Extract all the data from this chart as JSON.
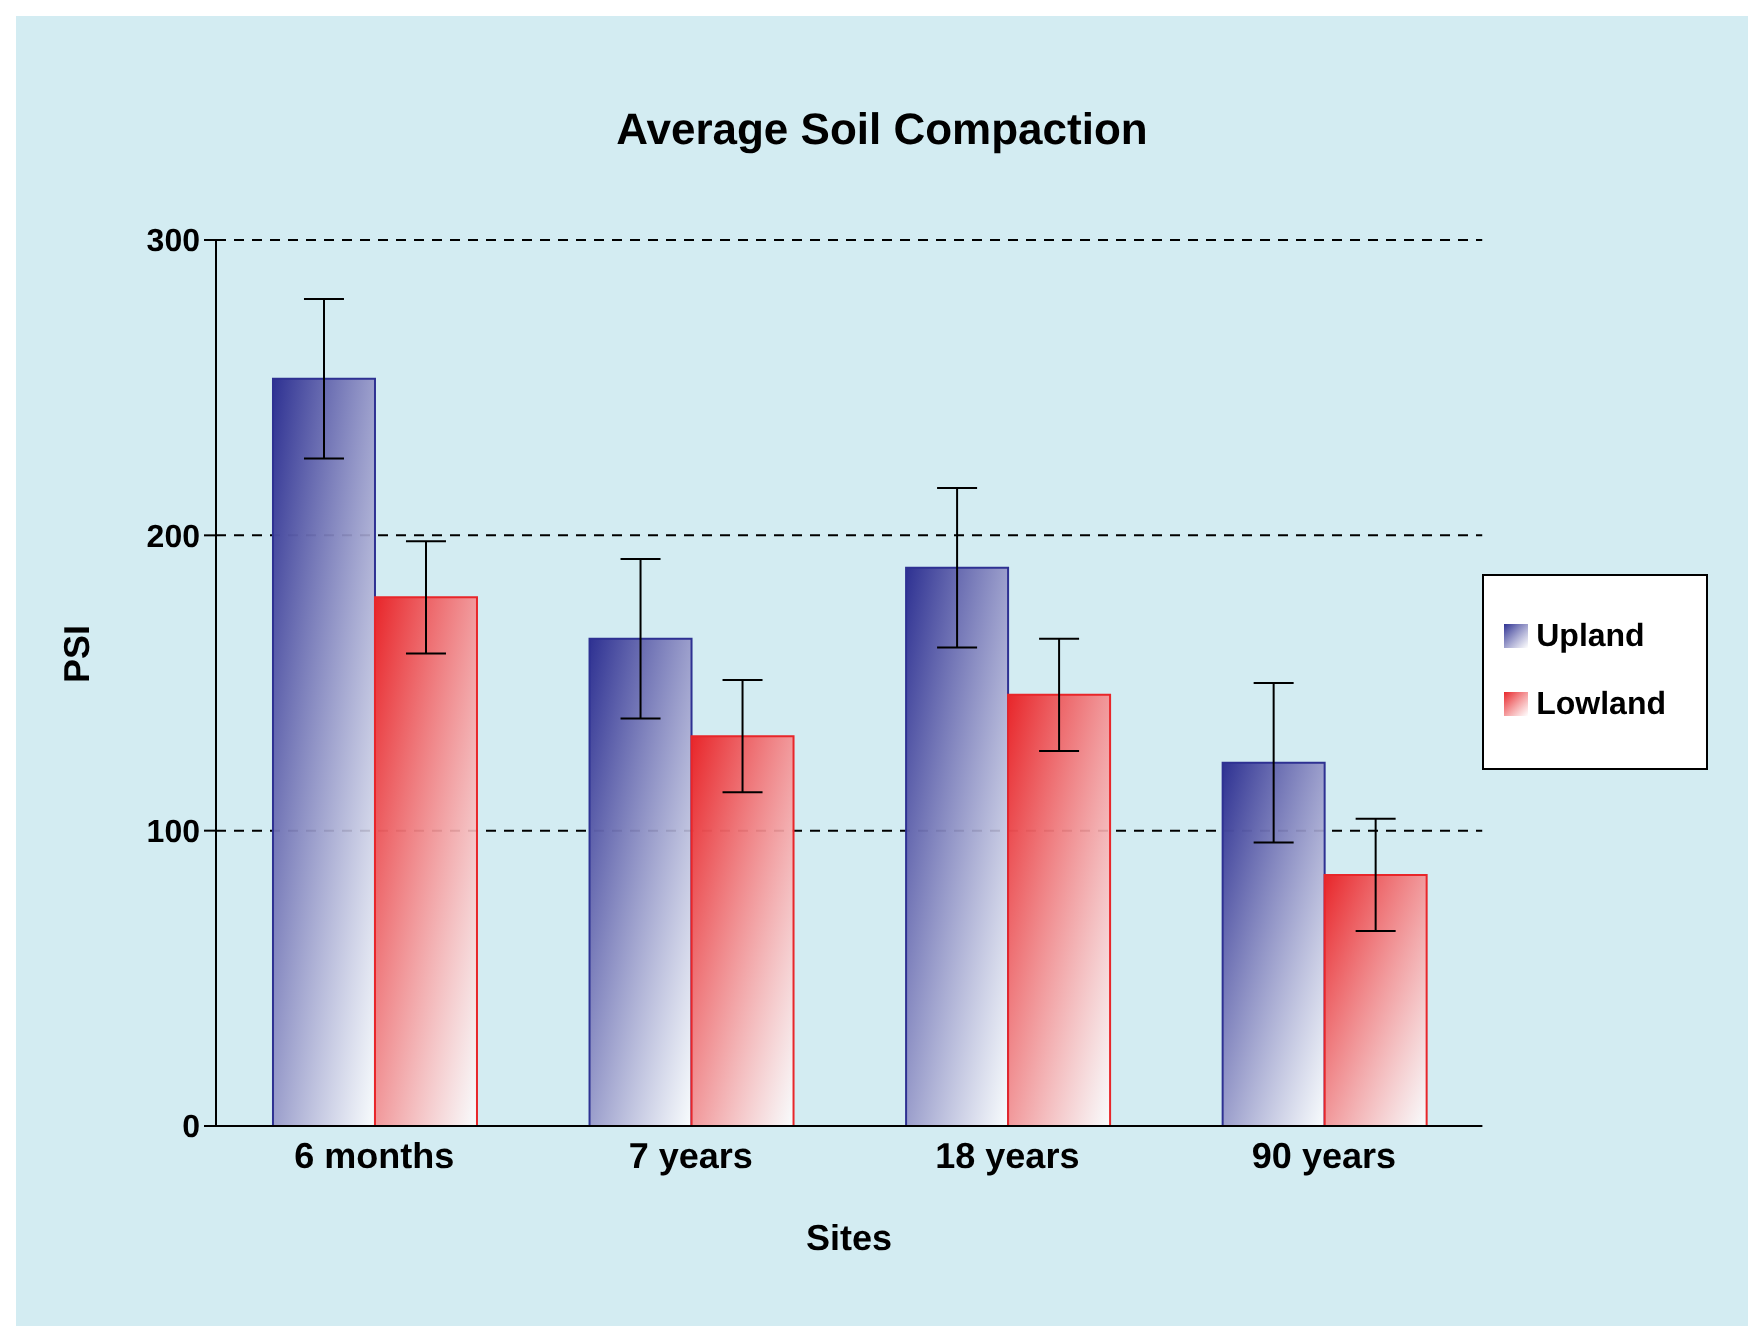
{
  "chart_data": {
    "type": "bar",
    "title": "Average Soil Compaction",
    "xlabel": "Sites",
    "ylabel": "PSI",
    "categories": [
      "6 months",
      "7 years",
      "18 years",
      "90 years"
    ],
    "series": [
      {
        "name": "Upland",
        "color": "#2e3192",
        "values": [
          253,
          165,
          189,
          123
        ],
        "errors": [
          27,
          27,
          27,
          27
        ]
      },
      {
        "name": "Lowland",
        "color": "#e8262a",
        "values": [
          179,
          132,
          146,
          85
        ],
        "errors": [
          19,
          19,
          19,
          19
        ]
      }
    ],
    "ylim": [
      0,
      300
    ],
    "yticks": [
      0,
      100,
      200,
      300
    ],
    "grid": "y",
    "legend": "right"
  }
}
